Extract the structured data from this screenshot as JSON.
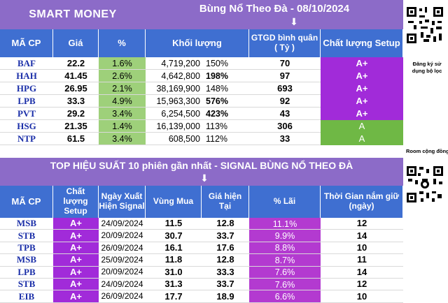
{
  "top": {
    "brand": "SMART MONEY",
    "title": "Bùng Nổ Theo Đà - 08/10/2024",
    "arrow": "⬇",
    "headers": [
      "MÃ CP",
      "Giá",
      "%",
      "Khối lượng",
      "GTGD bình quân\n( Tỷ )",
      "Chất lượng Setup"
    ],
    "rows": [
      {
        "sym": "BAF",
        "price": "22.2",
        "pct": "1.6%",
        "vol": "4,719,200",
        "volpct": "150%",
        "gtgd": "70",
        "setup": "A+"
      },
      {
        "sym": "HAH",
        "price": "41.45",
        "pct": "2.6%",
        "vol": "4,642,800",
        "volpct": "198%",
        "gtgd": "97",
        "setup": "A+"
      },
      {
        "sym": "HPG",
        "price": "26.95",
        "pct": "2.1%",
        "vol": "38,169,900",
        "volpct": "148%",
        "gtgd": "693",
        "setup": "A+"
      },
      {
        "sym": "LPB",
        "price": "33.3",
        "pct": "4.9%",
        "vol": "15,963,300",
        "volpct": "576%",
        "gtgd": "92",
        "setup": "A+"
      },
      {
        "sym": "PVT",
        "price": "29.2",
        "pct": "3.4%",
        "vol": "6,254,500",
        "volpct": "423%",
        "gtgd": "43",
        "setup": "A+"
      },
      {
        "sym": "HSG",
        "price": "21.35",
        "pct": "1.4%",
        "vol": "16,139,000",
        "volpct": "113%",
        "gtgd": "306",
        "setup": "A"
      },
      {
        "sym": "NTP",
        "price": "61.5",
        "pct": "3.4%",
        "vol": "608,500",
        "volpct": "112%",
        "gtgd": "33",
        "setup": "A"
      }
    ],
    "register_note": "Đăng ký sử dụng bộ lọc"
  },
  "room_note": "Room cộng đồng",
  "bottom": {
    "title": "TOP HIỆU SUẤT 10 phiên gần nhất  - SIGNAL BÙNG NỔ THEO ĐÀ",
    "arrow": "⬇",
    "headers": [
      "MÃ CP",
      "Chất lượng Setup",
      "Ngày Xuất Hiện Signal",
      "Vùng Mua",
      "Giá hiện Tại",
      "% Lãi",
      "Thời Gian nắm giữ (ngày)"
    ],
    "rows": [
      {
        "sym": "MSB",
        "setup": "A+",
        "date": "24/09/2024",
        "buy": "11.5",
        "now": "12.8",
        "gain": "11.1%",
        "days": "12"
      },
      {
        "sym": "STB",
        "setup": "A+",
        "date": "20/09/2024",
        "buy": "30.7",
        "now": "33.7",
        "gain": "9.9%",
        "days": "14"
      },
      {
        "sym": "TPB",
        "setup": "A+",
        "date": "26/09/2024",
        "buy": "16.1",
        "now": "17.6",
        "gain": "8.8%",
        "days": "10"
      },
      {
        "sym": "MSB",
        "setup": "A+",
        "date": "25/09/2024",
        "buy": "11.8",
        "now": "12.8",
        "gain": "8.7%",
        "days": "11"
      },
      {
        "sym": "LPB",
        "setup": "A+",
        "date": "20/09/2024",
        "buy": "31.0",
        "now": "33.3",
        "gain": "7.6%",
        "days": "14"
      },
      {
        "sym": "STB",
        "setup": "A+",
        "date": "24/09/2024",
        "buy": "31.3",
        "now": "33.7",
        "gain": "7.6%",
        "days": "12"
      },
      {
        "sym": "EIB",
        "setup": "A+",
        "date": "26/09/2024",
        "buy": "17.7",
        "now": "18.9",
        "gain": "6.6%",
        "days": "10"
      }
    ]
  },
  "colors": {
    "header_blue": "#3f6fd1",
    "title_purple": "#8c6bc8",
    "setup_purple": "#a12bd9",
    "setup_green": "#6fb845",
    "pct_green": "#9ed07a",
    "gain_magenta": "#b33ad0"
  },
  "icons": [
    "qr-code-icon"
  ]
}
